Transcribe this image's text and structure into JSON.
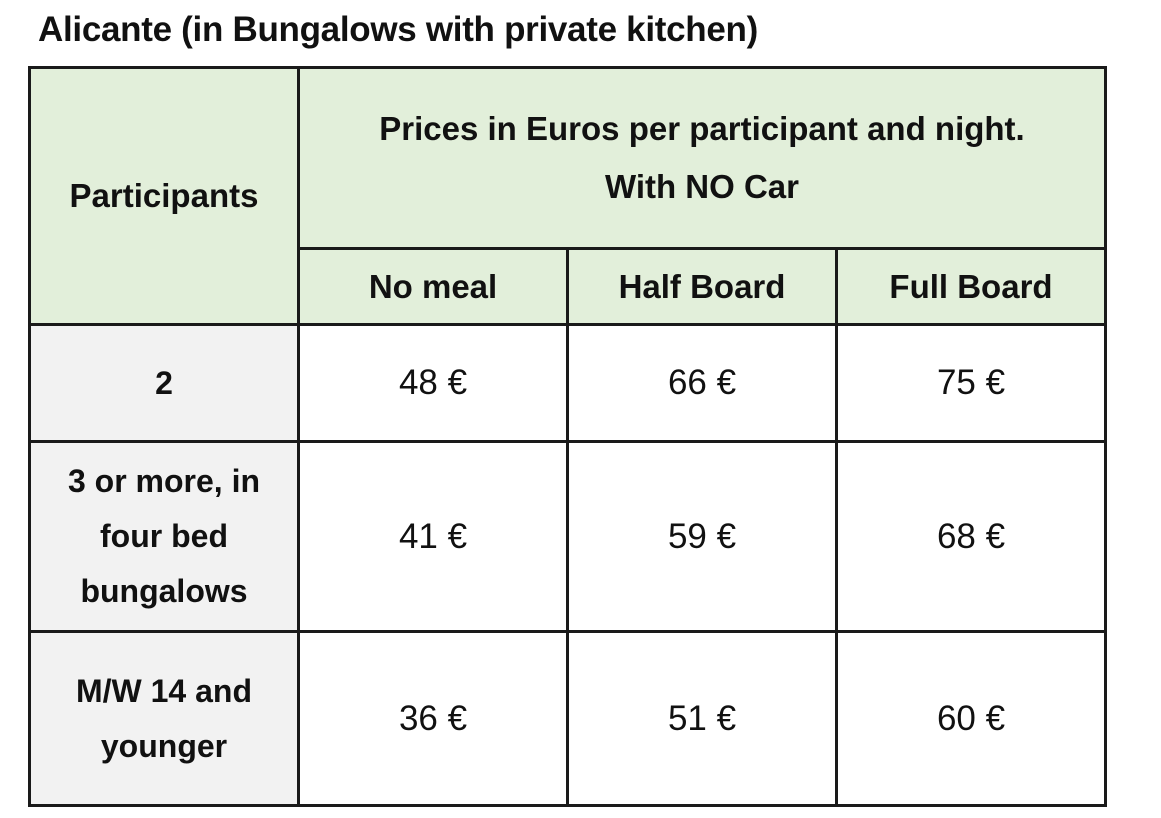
{
  "title": "Alicante (in Bungalows with private kitchen)",
  "table": {
    "header": {
      "participants": "Participants",
      "prices": [
        "Prices in Euros per participant and night.",
        "With NO Car"
      ],
      "columns": [
        "No meal",
        "Half Board",
        "Full Board"
      ]
    },
    "rows": [
      [
        "2",
        "48 €",
        "66 €",
        "75 €"
      ],
      [
        "3 or more, in four bed bungalows",
        "41 €",
        "59 €",
        "68 €"
      ],
      [
        "M/W 14 and younger",
        "36 €",
        "51 €",
        "60 €"
      ]
    ]
  }
}
